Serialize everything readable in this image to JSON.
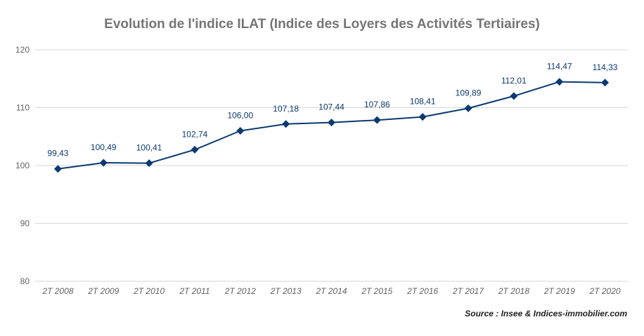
{
  "title": "Evolution de l'indice ILAT (Indice des Loyers des Activités Tertiaires)",
  "source": "Source : Insee & Indices-immobilier.com",
  "colors": {
    "series": "#0b3a70",
    "grid": "#d6d6d6",
    "axis_text": "#616161",
    "title": "#757575"
  },
  "chart_data": {
    "type": "line",
    "title": "Evolution de l'indice ILAT (Indice des Loyers des Activités Tertiaires)",
    "xlabel": "",
    "ylabel": "",
    "ylim": [
      80,
      120
    ],
    "yticks": [
      80,
      90,
      100,
      110,
      120
    ],
    "ytick_labels": [
      "80",
      "90",
      "100",
      "110",
      "120"
    ],
    "grid": true,
    "legend": "none",
    "marker": "diamond",
    "categories": [
      "2T 2008",
      "2T 2009",
      "2T 2010",
      "2T 2011",
      "2T 2012",
      "2T 2013",
      "2T 2014",
      "2T 2015",
      "2T 2016",
      "2T 2017",
      "2T 2018",
      "2T 2019",
      "2T 2020"
    ],
    "series": [
      {
        "values": [
          99.43,
          100.49,
          100.41,
          102.74,
          106.0,
          107.18,
          107.44,
          107.86,
          108.41,
          109.89,
          112.01,
          114.47,
          114.33
        ],
        "labels": [
          "99,43",
          "100,49",
          "100,41",
          "102,74",
          "106,00",
          "107,18",
          "107,44",
          "107,86",
          "108,41",
          "109,89",
          "112,01",
          "114,47",
          "114,33"
        ]
      }
    ]
  }
}
